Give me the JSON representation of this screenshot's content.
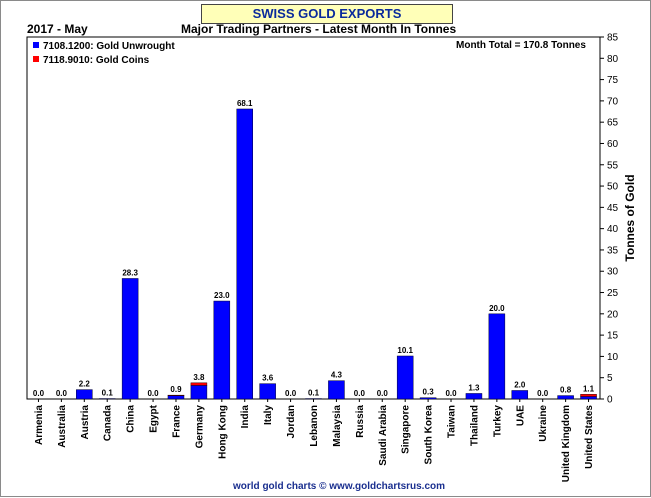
{
  "header": {
    "banner": "SWISS GOLD EXPORTS",
    "period": "2017 - May",
    "subtitle": "Major Trading Partners - Latest Month In Tonnes",
    "month_total": "Month Total = 170.8 Tonnes",
    "footer": "world gold charts © www.goldchartsrus.com"
  },
  "colors": {
    "unwrought": "#0000ff",
    "coins": "#ff0000",
    "banner_bg": "#ffffb8",
    "banner_text": "#0a2a9c"
  },
  "chart_data": {
    "type": "bar",
    "ylabel": "Tonnes of Gold",
    "ylim": [
      0,
      85
    ],
    "y_ticks": [
      0,
      5,
      10,
      15,
      20,
      25,
      30,
      35,
      40,
      45,
      50,
      55,
      60,
      65,
      70,
      75,
      80,
      85
    ],
    "y_axis_position": "right",
    "grid": false,
    "legend_position": "top-left",
    "stacked": true,
    "categories": [
      "Armenia",
      "Australia",
      "Austria",
      "Canada",
      "China",
      "Egypt",
      "France",
      "Germany",
      "Hong Kong",
      "India",
      "Italy",
      "Jordan",
      "Lebanon",
      "Malaysia",
      "Russia",
      "Saudi Arabia",
      "Singapore",
      "South Korea",
      "Taiwan",
      "Thailand",
      "Turkey",
      "UAE",
      "Ukraine",
      "United Kingdom",
      "United States"
    ],
    "series": [
      {
        "name": "7108.1200: Gold Unwrought",
        "values": [
          0.0,
          0.0,
          2.2,
          0.1,
          28.3,
          0.0,
          0.8,
          3.2,
          23.0,
          68.1,
          3.6,
          0.0,
          0.1,
          4.3,
          0.0,
          0.0,
          10.1,
          0.3,
          0.0,
          1.3,
          20.0,
          2.0,
          0.0,
          0.8,
          0.6
        ]
      },
      {
        "name": "7118.9010: Gold Coins",
        "values": [
          0.0,
          0.0,
          0.0,
          0.0,
          0.0,
          0.0,
          0.1,
          0.6,
          0.0,
          0.0,
          0.0,
          0.0,
          0.0,
          0.0,
          0.0,
          0.0,
          0.0,
          0.0,
          0.0,
          0.0,
          0.0,
          0.0,
          0.0,
          0.0,
          0.5
        ]
      }
    ],
    "data_labels": [
      "0.0",
      "0.0",
      "2.2",
      "0.1",
      "28.3",
      "0.0",
      "0.9",
      "3.8",
      "23.0",
      "68.1",
      "3.6",
      "0.0",
      "0.1",
      "4.3",
      "0.0",
      "0.0",
      "10.1",
      "0.3",
      "0.0",
      "1.3",
      "20.0",
      "2.0",
      "0.0",
      "0.8",
      "1.1"
    ]
  }
}
